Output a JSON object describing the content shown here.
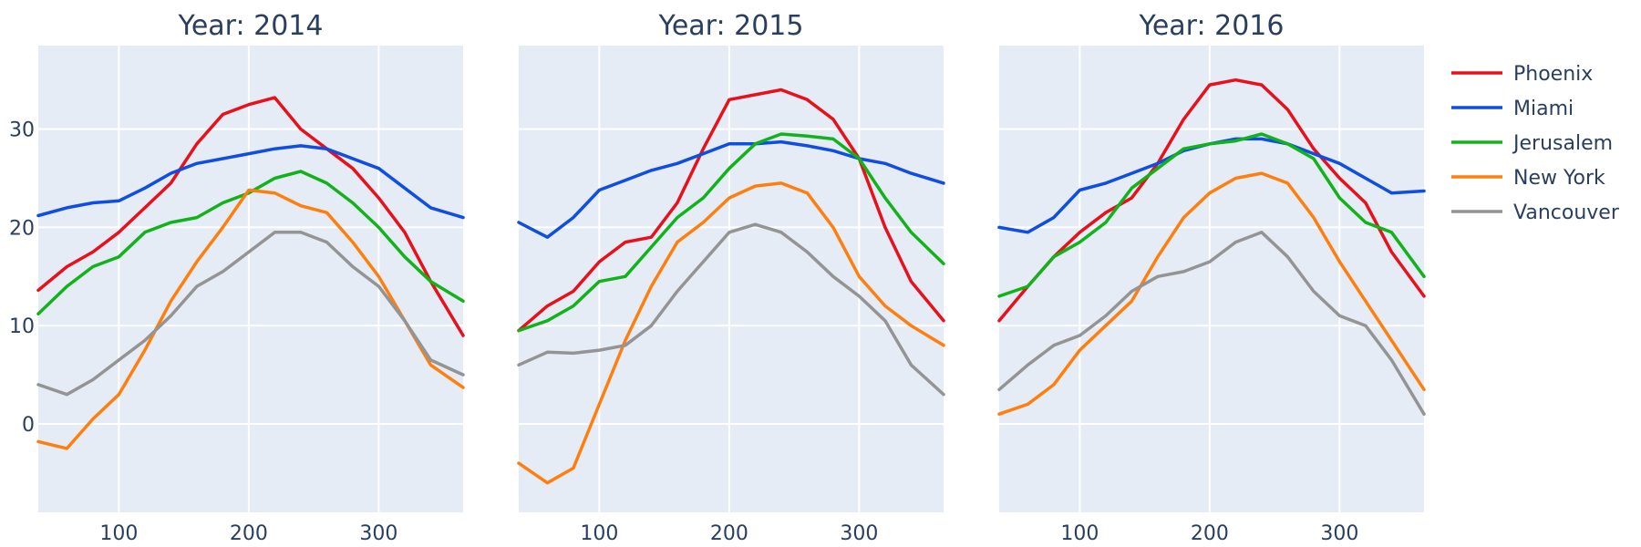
{
  "chart_data": {
    "type": "line",
    "x_range": [
      38,
      365
    ],
    "y_range": [
      -9,
      38.5
    ],
    "x_ticks": [
      100,
      200,
      300
    ],
    "y_ticks": [
      0,
      10,
      20,
      30
    ],
    "legend": {
      "placement": "right",
      "entries": [
        {
          "name": "Phoenix",
          "color": "#e8111b"
        },
        {
          "name": "Miami",
          "color": "#0f4ee0"
        },
        {
          "name": "Jerusalem",
          "color": "#12b31a"
        },
        {
          "name": "New York",
          "color": "#ff7f0e"
        },
        {
          "name": "Vancouver",
          "color": "#949494"
        }
      ]
    },
    "x": [
      38,
      60,
      80,
      100,
      120,
      140,
      160,
      180,
      200,
      220,
      240,
      260,
      280,
      300,
      320,
      340,
      365
    ],
    "panels": [
      {
        "title": "Year: 2014",
        "series": [
          {
            "name": "Phoenix",
            "values": [
              13.6,
              16.0,
              17.5,
              19.5,
              22.0,
              24.5,
              28.5,
              31.5,
              32.5,
              33.2,
              30.0,
              28.0,
              26.0,
              23.0,
              19.5,
              14.5,
              9.0
            ]
          },
          {
            "name": "Miami",
            "values": [
              21.2,
              22.0,
              22.5,
              22.7,
              24.0,
              25.5,
              26.5,
              27.0,
              27.5,
              28.0,
              28.3,
              28.0,
              27.0,
              26.0,
              24.0,
              22.0,
              21.0
            ]
          },
          {
            "name": "Jerusalem",
            "values": [
              11.2,
              14.0,
              16.0,
              17.0,
              19.5,
              20.5,
              21.0,
              22.5,
              23.5,
              25.0,
              25.7,
              24.5,
              22.5,
              20.0,
              17.0,
              14.5,
              12.5
            ]
          },
          {
            "name": "New York",
            "values": [
              -1.8,
              -2.5,
              0.5,
              3.0,
              7.5,
              12.5,
              16.5,
              20.0,
              23.8,
              23.5,
              22.2,
              21.5,
              18.5,
              15.0,
              10.5,
              6.0,
              3.7
            ]
          },
          {
            "name": "Vancouver",
            "values": [
              4.0,
              3.0,
              4.5,
              6.5,
              8.5,
              11.0,
              14.0,
              15.5,
              17.5,
              19.5,
              19.5,
              18.5,
              16.0,
              14.0,
              10.5,
              6.5,
              5.0
            ]
          }
        ]
      },
      {
        "title": "Year: 2015",
        "series": [
          {
            "name": "Phoenix",
            "values": [
              9.5,
              12.0,
              13.5,
              16.5,
              18.5,
              19.0,
              22.5,
              28.0,
              33.0,
              33.5,
              34.0,
              33.0,
              31.0,
              27.0,
              20.0,
              14.5,
              10.5
            ]
          },
          {
            "name": "Miami",
            "values": [
              20.5,
              19.0,
              21.0,
              23.8,
              24.8,
              25.8,
              26.5,
              27.5,
              28.5,
              28.5,
              28.7,
              28.3,
              27.8,
              27.0,
              26.5,
              25.5,
              24.5
            ]
          },
          {
            "name": "Jerusalem",
            "values": [
              9.5,
              10.5,
              12.0,
              14.5,
              15.0,
              18.0,
              21.0,
              23.0,
              26.0,
              28.5,
              29.5,
              29.3,
              29.0,
              27.0,
              23.0,
              19.5,
              16.3
            ]
          },
          {
            "name": "New York",
            "values": [
              -4.0,
              -6.0,
              -4.5,
              2.0,
              8.5,
              14.0,
              18.5,
              20.5,
              23.0,
              24.2,
              24.5,
              23.5,
              20.0,
              15.0,
              12.0,
              10.0,
              8.0
            ]
          },
          {
            "name": "Vancouver",
            "values": [
              6.0,
              7.3,
              7.2,
              7.5,
              8.0,
              10.0,
              13.5,
              16.5,
              19.5,
              20.3,
              19.5,
              17.5,
              15.0,
              13.0,
              10.5,
              6.0,
              3.0
            ]
          }
        ]
      },
      {
        "title": "Year: 2016",
        "series": [
          {
            "name": "Phoenix",
            "values": [
              10.5,
              14.0,
              17.0,
              19.5,
              21.5,
              23.0,
              26.5,
              31.0,
              34.5,
              35.0,
              34.5,
              32.0,
              28.0,
              25.0,
              22.5,
              17.5,
              13.0
            ]
          },
          {
            "name": "Miami",
            "values": [
              20.0,
              19.5,
              21.0,
              23.8,
              24.5,
              25.5,
              26.5,
              27.8,
              28.5,
              29.0,
              29.0,
              28.5,
              27.5,
              26.5,
              25.0,
              23.5,
              23.7
            ]
          },
          {
            "name": "Jerusalem",
            "values": [
              13.0,
              14.0,
              17.0,
              18.5,
              20.5,
              24.0,
              26.0,
              28.0,
              28.5,
              28.8,
              29.5,
              28.5,
              27.0,
              23.0,
              20.5,
              19.5,
              15.0
            ]
          },
          {
            "name": "New York",
            "values": [
              1.0,
              2.0,
              4.0,
              7.5,
              10.0,
              12.5,
              17.0,
              21.0,
              23.5,
              25.0,
              25.5,
              24.5,
              21.0,
              16.5,
              12.5,
              8.5,
              3.5
            ]
          },
          {
            "name": "Vancouver",
            "values": [
              3.5,
              6.0,
              8.0,
              9.0,
              11.0,
              13.5,
              15.0,
              15.5,
              16.5,
              18.5,
              19.5,
              17.0,
              13.5,
              11.0,
              10.0,
              6.5,
              1.0
            ]
          }
        ]
      }
    ]
  }
}
